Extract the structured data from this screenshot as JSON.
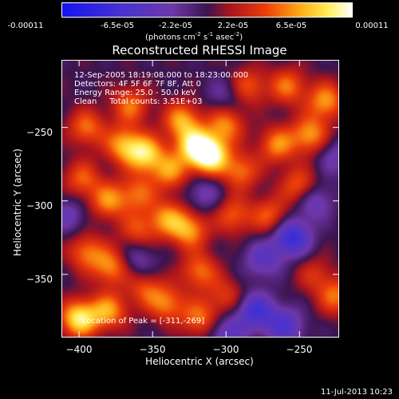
{
  "colorbar": {
    "ticks": [
      "-0.00011",
      "-6.5e-05",
      "-2.2e-05",
      "2.2e-05",
      "6.5e-05",
      "0.00011"
    ],
    "units": {
      "pre": "(photons cm",
      "e1": "-2",
      "mid1": " s",
      "e2": "-1",
      "mid2": " asec",
      "e3": "-2",
      "post": ")"
    },
    "range": [
      -0.00011,
      0.00011
    ]
  },
  "chart_data": {
    "type": "heatmap",
    "title": "Reconstructed RHESSI Image",
    "xlabel": "Heliocentric X (arcsec)",
    "ylabel": "Heliocentric Y (arcsec)",
    "xlim": [
      -412,
      -223
    ],
    "ylim": [
      -393,
      -204
    ],
    "x_ticks": [
      -400,
      -350,
      -300,
      -250
    ],
    "y_ticks": [
      -250,
      -300,
      -350
    ],
    "x_tick_labels": [
      "−400",
      "−350",
      "−300",
      "−250"
    ],
    "y_tick_labels": [
      "−250",
      "−300",
      "−350"
    ],
    "colormap": "rhessi-blue-purple-red-yellow-white",
    "peak": {
      "x": -311,
      "y": -269
    },
    "blobs": [
      {
        "x": -311,
        "y": -269,
        "amp": 1.0
      },
      {
        "x": -322,
        "y": -262,
        "amp": 0.7
      },
      {
        "x": -330,
        "y": -245,
        "amp": 0.6
      },
      {
        "x": -300,
        "y": -248,
        "amp": 0.55
      },
      {
        "x": -290,
        "y": -280,
        "amp": 0.5
      },
      {
        "x": -265,
        "y": -262,
        "amp": 0.55
      },
      {
        "x": -250,
        "y": -290,
        "amp": 0.5
      },
      {
        "x": -243,
        "y": -255,
        "amp": 0.6
      },
      {
        "x": -270,
        "y": -310,
        "amp": 0.45
      },
      {
        "x": -258,
        "y": -222,
        "amp": 0.5
      },
      {
        "x": -232,
        "y": -232,
        "amp": 0.6
      },
      {
        "x": -285,
        "y": -222,
        "amp": 0.45
      },
      {
        "x": -355,
        "y": -268,
        "amp": 0.75
      },
      {
        "x": -370,
        "y": -262,
        "amp": 0.6
      },
      {
        "x": -338,
        "y": -280,
        "amp": 0.55
      },
      {
        "x": -380,
        "y": -300,
        "amp": 0.55
      },
      {
        "x": -395,
        "y": -250,
        "amp": 0.5
      },
      {
        "x": -398,
        "y": -285,
        "amp": 0.45
      },
      {
        "x": -360,
        "y": -295,
        "amp": 0.45
      },
      {
        "x": -365,
        "y": -235,
        "amp": 0.5
      },
      {
        "x": -395,
        "y": -335,
        "amp": 0.5
      },
      {
        "x": -378,
        "y": -345,
        "amp": 0.55
      },
      {
        "x": -360,
        "y": -320,
        "amp": 0.4
      },
      {
        "x": -340,
        "y": -312,
        "amp": 0.55
      },
      {
        "x": -325,
        "y": -320,
        "amp": 0.6
      },
      {
        "x": -318,
        "y": -348,
        "amp": 0.5
      },
      {
        "x": -340,
        "y": -370,
        "amp": 0.5
      },
      {
        "x": -318,
        "y": -380,
        "amp": 0.5
      },
      {
        "x": -400,
        "y": -380,
        "amp": 0.85
      },
      {
        "x": -380,
        "y": -375,
        "amp": 0.6
      },
      {
        "x": -355,
        "y": -360,
        "amp": 0.4
      },
      {
        "x": -295,
        "y": -310,
        "amp": 0.45
      },
      {
        "x": -300,
        "y": -365,
        "amp": 0.35
      },
      {
        "x": -225,
        "y": -365,
        "amp": 0.5
      },
      {
        "x": -240,
        "y": -350,
        "amp": 0.3
      },
      {
        "x": -275,
        "y": -340,
        "amp": -0.4
      },
      {
        "x": -255,
        "y": -325,
        "amp": -0.7
      },
      {
        "x": -240,
        "y": -300,
        "amp": -0.4
      },
      {
        "x": -280,
        "y": -375,
        "amp": -0.6
      },
      {
        "x": -260,
        "y": -385,
        "amp": -0.5
      },
      {
        "x": -300,
        "y": -390,
        "amp": -0.4
      },
      {
        "x": -360,
        "y": -340,
        "amp": -0.3
      },
      {
        "x": -315,
        "y": -295,
        "amp": -0.3
      },
      {
        "x": -225,
        "y": -270,
        "amp": -0.3
      },
      {
        "x": -408,
        "y": -310,
        "amp": -0.3
      },
      {
        "x": -300,
        "y": -228,
        "amp": -0.25
      }
    ]
  },
  "annotations": {
    "line1": "12-Sep-2005 18:19:08.000 to 18:23:00.000",
    "line2": "Detectors: 4F 5F 6F 7F 8F, Att 0",
    "line3": "Energy Range: 25.0 - 50.0 keV",
    "line4": "Clean     Total counts: 3.51E+03",
    "peak": "Location of Peak = [-311,-269]"
  },
  "footer": "11-Jul-2013 10:23"
}
